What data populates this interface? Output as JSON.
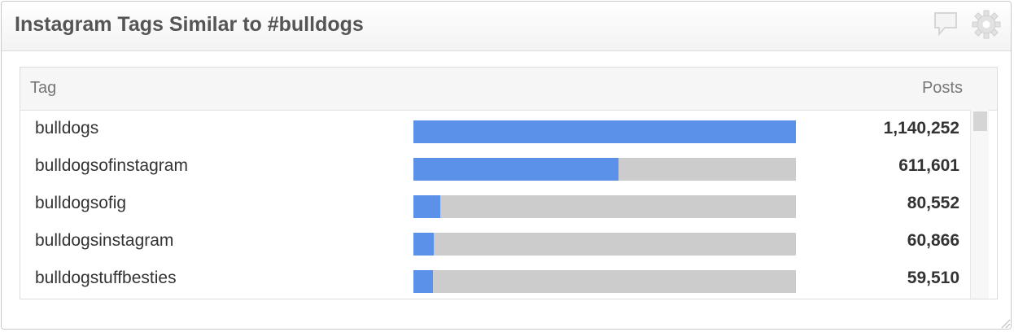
{
  "widget": {
    "title": "Instagram Tags Similar to #bulldogs",
    "icons": [
      "comment-icon",
      "gear-icon"
    ]
  },
  "table": {
    "col_tag": "Tag",
    "col_posts": "Posts",
    "rows": [
      {
        "tag": "bulldogs",
        "posts": "1,140,252",
        "share": 1.0
      },
      {
        "tag": "bulldogsofinstagram",
        "posts": "611,601",
        "share": 0.536
      },
      {
        "tag": "bulldogsofig",
        "posts": "80,552",
        "share": 0.071
      },
      {
        "tag": "bulldogsinstagram",
        "posts": "60,866",
        "share": 0.053
      },
      {
        "tag": "bulldogstuffbesties",
        "posts": "59,510",
        "share": 0.052
      }
    ]
  },
  "colors": {
    "bar_fill": "#5b91e8",
    "bar_track": "#cccccc"
  }
}
